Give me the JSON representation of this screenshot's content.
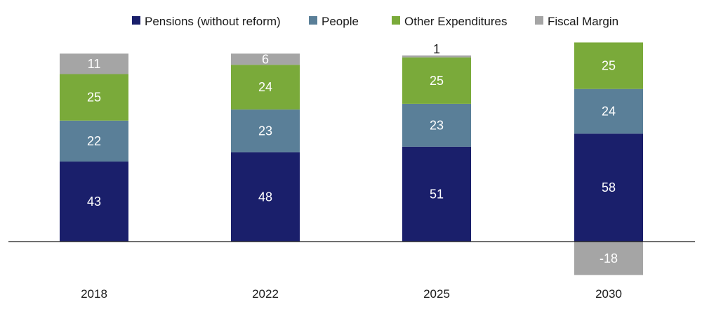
{
  "chart_data": {
    "type": "bar",
    "stacked": true,
    "categories": [
      "2018",
      "2022",
      "2025",
      "2030"
    ],
    "series": [
      {
        "name": "Pensions (without reform)",
        "values": [
          43,
          48,
          51,
          58
        ],
        "color": "#1a1f6b"
      },
      {
        "name": "People",
        "values": [
          22,
          23,
          23,
          24
        ],
        "color": "#5a7f98"
      },
      {
        "name": "Other Expenditures",
        "values": [
          25,
          24,
          25,
          25
        ],
        "color": "#7aaa3a"
      },
      {
        "name": "Fiscal Margin",
        "values": [
          11,
          6,
          1,
          -18
        ],
        "color": "#a5a5a5"
      }
    ],
    "data_labels": [
      [
        "43",
        "48",
        "51",
        "58"
      ],
      [
        "22",
        "23",
        "23",
        "24"
      ],
      [
        "25",
        "24",
        "25",
        "25"
      ],
      [
        "11",
        "6",
        "1",
        "-18"
      ]
    ],
    "label_colors": [
      "#ffffff",
      "#ffffff",
      "#ffffff",
      "#ffffff"
    ],
    "outside_label_color": "#1a1a1a",
    "ylim": [
      -18,
      108
    ],
    "legend_position": "top",
    "grid": false
  }
}
